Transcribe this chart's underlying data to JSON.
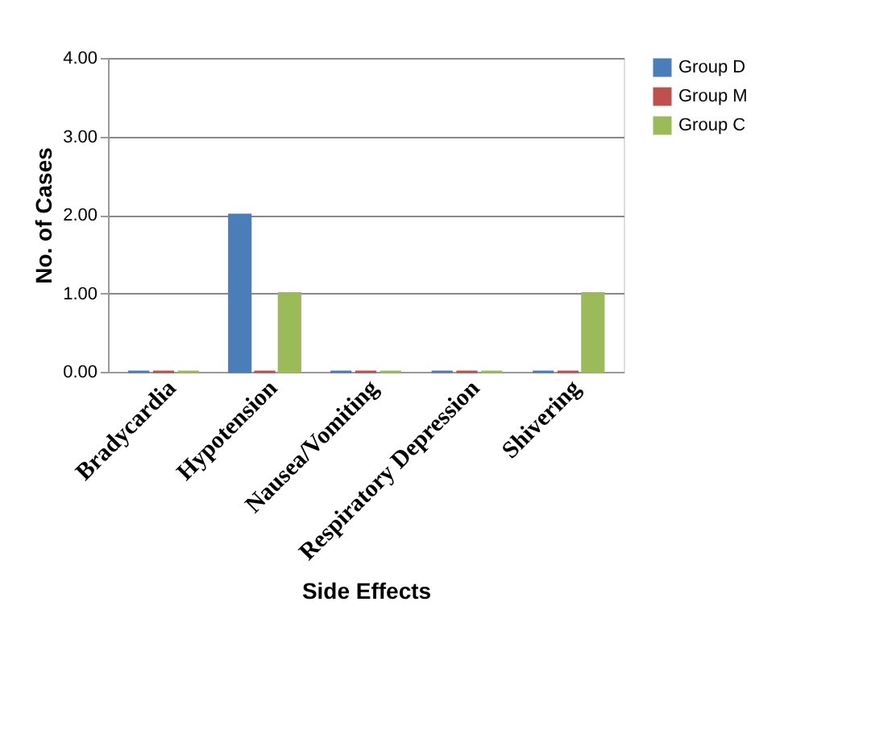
{
  "chart_data": {
    "type": "bar",
    "xlabel": "Side Effects",
    "ylabel": "No. of Cases",
    "categories": [
      "Bradycardia",
      "Hypotension",
      "Nausea/Vomiting",
      "Respiratory Depression",
      "Shivering"
    ],
    "series": [
      {
        "name": "Group D",
        "color": "#4a7ebb",
        "values": [
          0,
          2,
          0,
          0,
          0
        ]
      },
      {
        "name": "Group M",
        "color": "#c0504d",
        "values": [
          0,
          0,
          0,
          0,
          0
        ]
      },
      {
        "name": "Group C",
        "color": "#9bbb59",
        "values": [
          0,
          1,
          0,
          0,
          1
        ]
      }
    ],
    "ylim": [
      0,
      4
    ],
    "yticks": [
      {
        "value": 0,
        "label": "0.00"
      },
      {
        "value": 1,
        "label": "1.00"
      },
      {
        "value": 2,
        "label": "2.00"
      },
      {
        "value": 3,
        "label": "3.00"
      },
      {
        "value": 4,
        "label": "4.00"
      }
    ],
    "grid": "y",
    "legend": "right"
  }
}
